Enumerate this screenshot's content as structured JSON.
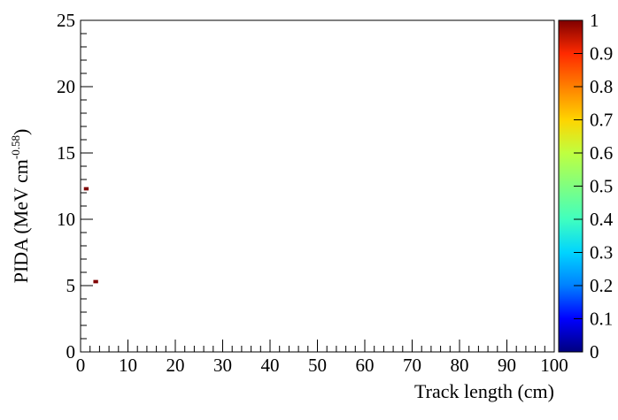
{
  "chart_data": {
    "type": "heatmap",
    "title": "",
    "xlabel": "Track length (cm)",
    "ylabel_main": "PIDA (MeV cm",
    "ylabel_exponent": "-0.58",
    "ylabel_close": ")",
    "xlim": [
      0,
      100
    ],
    "ylim": [
      0,
      25
    ],
    "x_ticks": [
      "0",
      "10",
      "20",
      "30",
      "40",
      "50",
      "60",
      "70",
      "80",
      "90",
      "100"
    ],
    "y_ticks": [
      "0",
      "5",
      "10",
      "15",
      "20",
      "25"
    ],
    "grid": false,
    "colorbar": {
      "range": [
        0,
        1
      ],
      "ticks": [
        "0",
        "0.1",
        "0.2",
        "0.3",
        "0.4",
        "0.5",
        "0.6",
        "0.7",
        "0.8",
        "0.9",
        "1"
      ],
      "palette": [
        "#00007f",
        "#0000ff",
        "#0080ff",
        "#00d4ff",
        "#40ffbf",
        "#80ff80",
        "#bfff40",
        "#ffd400",
        "#ff8000",
        "#ff2a00",
        "#7f0000"
      ]
    },
    "cells": [
      {
        "x": 1.2,
        "y": 12.3,
        "value": 1.0
      },
      {
        "x": 3.2,
        "y": 5.3,
        "value": 1.0
      }
    ],
    "bin_size": {
      "x": 1.0,
      "y": 0.25
    }
  }
}
